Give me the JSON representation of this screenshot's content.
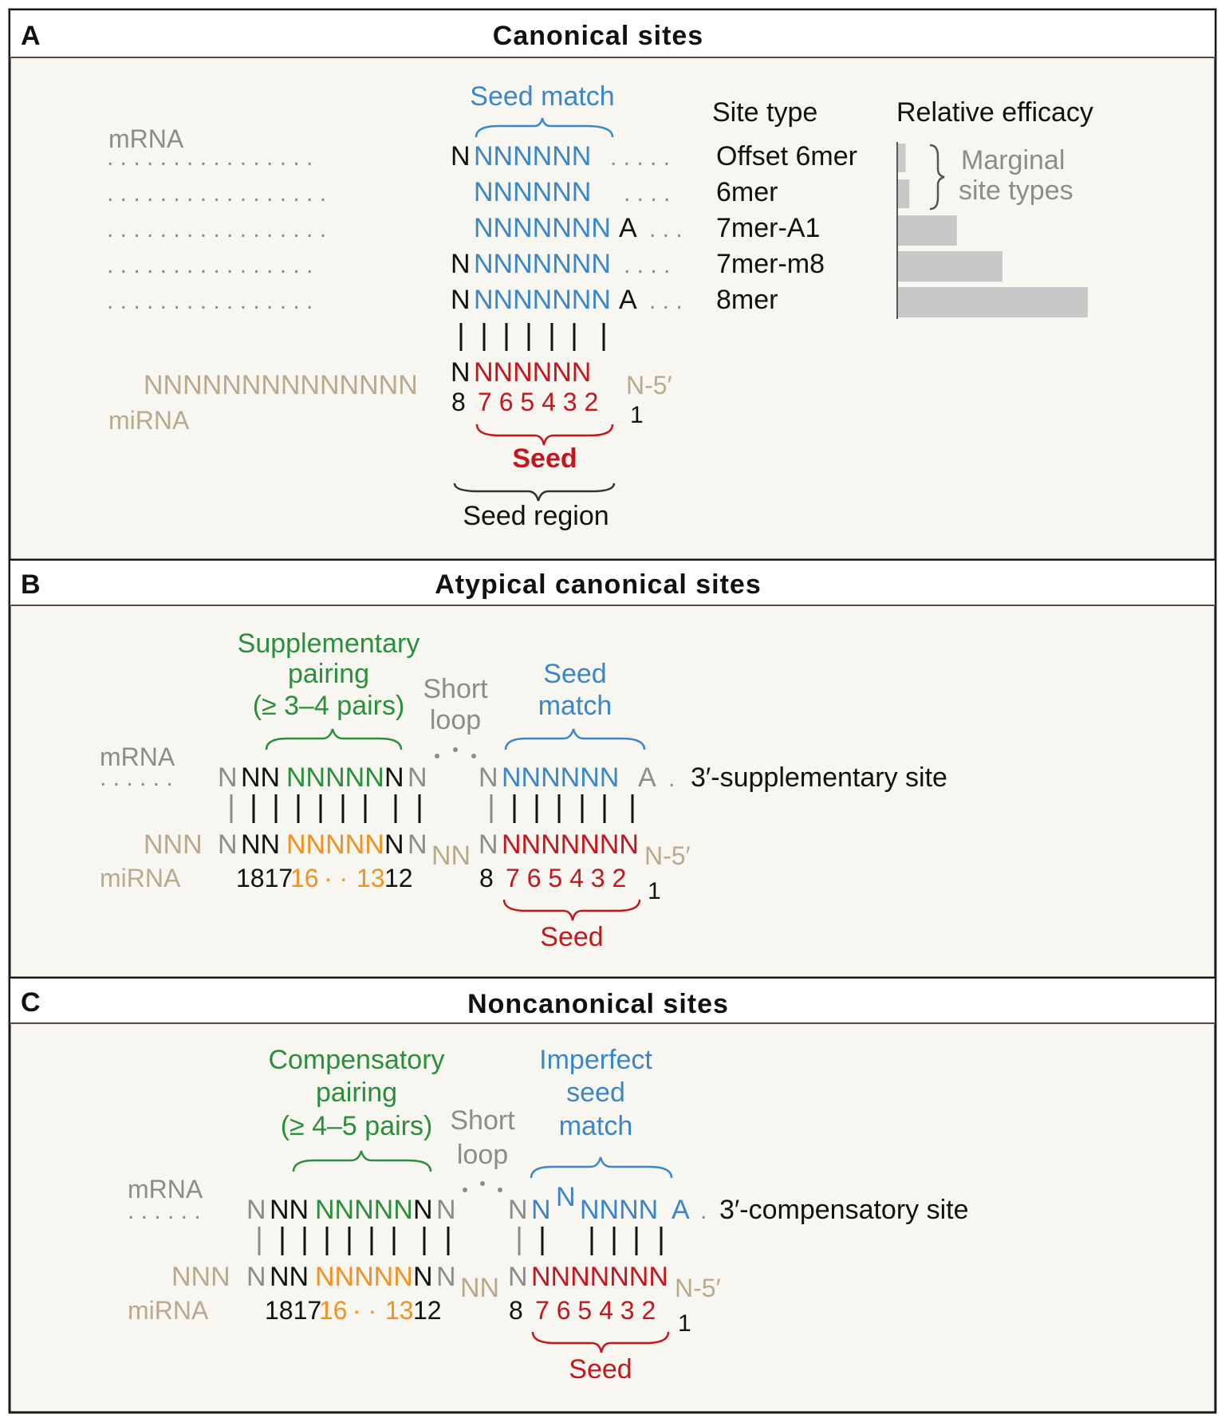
{
  "colors": {
    "gray": "#8c8c8c",
    "tan": "#b9aa8f",
    "blue": "#3a86c8",
    "red": "#c4161c",
    "green": "#2a8f3a",
    "orange": "#ef9221",
    "black": "#111111",
    "panel_bg": "#f8f6f1",
    "bar": "#c8c8c8"
  },
  "panel_a": {
    "letter": "A",
    "title": "Canonical sites",
    "seed_match": "Seed match",
    "site_type_header": "Site type",
    "efficacy_header": "Relative efficacy",
    "mrna_label": "mRNA",
    "mirna_label": "miRNA",
    "marginal_line1": "Marginal",
    "marginal_line2": "site types",
    "rows": [
      {
        "dots": ". . . . . . . . . . . . . . . .",
        "n_left": "N",
        "blue": "NNNNNN",
        "a": "",
        "trail": ". . . . .",
        "type": "Offset 6mer"
      },
      {
        "dots": ". . . . . . . . . . . . . . . . .",
        "n_left": "",
        "blue": "NNNNNN",
        "a": "",
        "trail": ". . . .",
        "type": "6mer"
      },
      {
        "dots": ". . . . . . . . . . . . . . . . .",
        "n_left": "",
        "blue": "NNNNNNN",
        "a": "A",
        "trail": ". . .",
        "type": "7mer-A1"
      },
      {
        "dots": ". . . . . . . . . . . . . . . .",
        "n_left": "N",
        "blue": "NNNNNNN",
        "a": "",
        "trail": ". . . .",
        "type": "7mer-m8"
      },
      {
        "dots": ". . . . . . . . . . . . . . . .",
        "n_left": "N",
        "blue": "NNNNNNN",
        "a": "A",
        "trail": ". . .",
        "type": "8mer"
      }
    ],
    "relative_efficacy": [
      0.04,
      0.06,
      0.31,
      0.55,
      1.0
    ],
    "mirna_tail": "NNNNNNNNNNNNNN",
    "mirna_n8": "N",
    "mirna_seed": "NNNNNN",
    "mirna_n1": "N-5′",
    "pos8": "8",
    "seed_numbers": "7 6 5 4 3 2",
    "pos1": "1",
    "seed_label": "Seed",
    "seed_region_label": "Seed region"
  },
  "panel_b": {
    "letter": "B",
    "title": "Atypical canonical sites",
    "supp_line1": "Supplementary",
    "supp_line2": "pairing",
    "supp_line3": "(≥ 3–4 pairs)",
    "loop_line1": "Short",
    "loop_line2": "loop",
    "seed_line1": "Seed",
    "seed_line2": "match",
    "mrna_label": "mRNA",
    "mirna_label": "miRNA",
    "site_name": "3′-supplementary site",
    "mirna_numbers_black1": "1817",
    "mirna_numbers_orange1": "16",
    "mirna_numbers_dots": "· ·",
    "mirna_numbers_orange2": "13",
    "mirna_numbers_black2": "12",
    "pos8": "8",
    "seed_numbers": "7 6 5 4 3 2",
    "pos1": "1",
    "seed_label": "Seed",
    "n5": "N-5′"
  },
  "panel_c": {
    "letter": "C",
    "title": "Noncanonical sites",
    "comp_line1": "Compensatory",
    "comp_line2": "pairing",
    "comp_line3": "(≥ 4–5 pairs)",
    "loop_line1": "Short",
    "loop_line2": "loop",
    "imp_line1": "Imperfect",
    "imp_line2": "seed",
    "imp_line3": "match",
    "mrna_label": "mRNA",
    "mirna_label": "miRNA",
    "site_name": "3′-compensatory site",
    "mirna_numbers_black1": "1817",
    "mirna_numbers_orange1": "16",
    "mirna_numbers_dots": "· ·",
    "mirna_numbers_orange2": "13",
    "mirna_numbers_black2": "12",
    "pos8": "8",
    "seed_numbers": "7 6 5 4 3 2",
    "pos1": "1",
    "seed_label": "Seed",
    "n5": "N-5′"
  }
}
